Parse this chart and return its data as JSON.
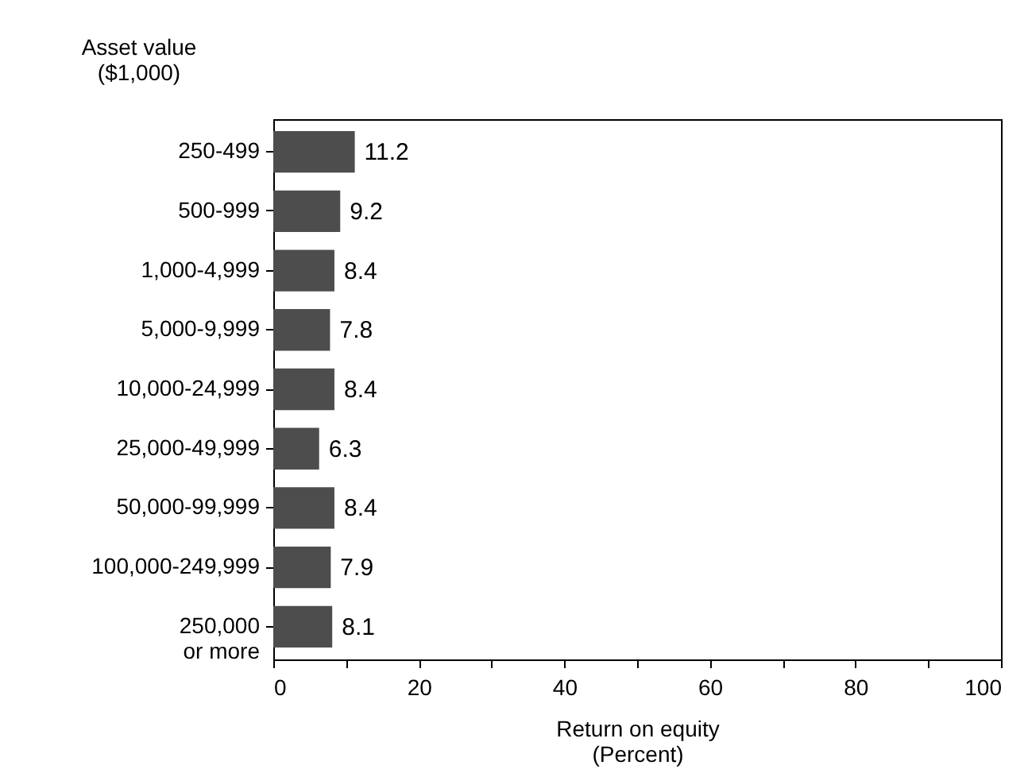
{
  "chart_data": {
    "type": "bar",
    "orientation": "horizontal",
    "ylabel": "Asset value\n($1,000)",
    "xlabel": "Return on equity\n(Percent)",
    "categories": [
      "250-499",
      "500-999",
      "1,000-4,999",
      "5,000-9,999",
      "10,000-24,999",
      "25,000-49,999",
      "50,000-99,999",
      "100,000-249,999",
      "250,000\nor more"
    ],
    "values": [
      11.2,
      9.2,
      8.4,
      7.8,
      8.4,
      6.3,
      8.4,
      7.9,
      8.1
    ],
    "color": "#4d4d4d",
    "data_labels": true,
    "xlim": [
      0,
      100
    ],
    "xticks": [
      0,
      {
        "value": 10,
        "label": null
      },
      20,
      {
        "value": 30,
        "label": null
      },
      40,
      {
        "value": 50,
        "label": null
      },
      60,
      {
        "value": 70,
        "label": null
      },
      80,
      {
        "value": 90,
        "label": null
      },
      100
    ]
  }
}
